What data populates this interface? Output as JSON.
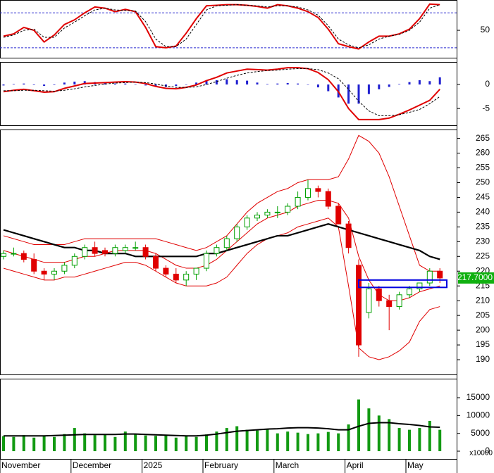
{
  "chart_data": [
    {
      "type": "line",
      "ylim": [
        3,
        102
      ],
      "yticks": [
        50
      ],
      "levels": [
        80,
        20
      ],
      "level_color": "#2a2ad0",
      "series": [
        {
          "color": "#e00000",
          "style": "solid",
          "values": [
            40,
            44,
            55,
            50,
            30,
            42,
            60,
            68,
            80,
            90,
            88,
            82,
            86,
            82,
            55,
            22,
            20,
            23,
            45,
            70,
            92,
            93,
            94,
            94,
            93,
            91,
            88,
            94,
            92,
            88,
            82,
            72,
            52,
            27,
            22,
            18,
            30,
            40,
            40,
            44,
            52,
            70,
            95,
            94
          ]
        },
        {
          "color": "#000000",
          "style": "dashed",
          "values": [
            38,
            42,
            50,
            52,
            38,
            38,
            54,
            64,
            75,
            85,
            88,
            85,
            84,
            83,
            65,
            35,
            22,
            22,
            35,
            60,
            85,
            92,
            93,
            94,
            93,
            92,
            90,
            92,
            92,
            90,
            85,
            76,
            58,
            35,
            25,
            20,
            25,
            35,
            40,
            43,
            50,
            64,
            88,
            94
          ]
        }
      ]
    },
    {
      "type": "macd",
      "ylim": [
        -8.5,
        4.7
      ],
      "yticks": [
        0,
        -5
      ],
      "histogram": {
        "color": "#2020d0",
        "values": [
          -0.2,
          0.1,
          0.2,
          -0.1,
          -0.3,
          -0.1,
          0.4,
          0.6,
          0.7,
          0.5,
          0.3,
          0.2,
          0.2,
          0,
          -0.2,
          -0.5,
          -0.5,
          -0.3,
          0,
          0.4,
          0.8,
          0.9,
          1.1,
          0.9,
          0.8,
          0.4,
          0.1,
          0.2,
          0.3,
          0.2,
          0,
          -0.6,
          -1.4,
          -2.7,
          -4.0,
          -4.0,
          -2.0,
          -1.0,
          -0.5,
          0.1,
          0.5,
          0.9,
          0.7,
          1.5
        ]
      },
      "series": [
        {
          "color": "#e00000",
          "style": "solid",
          "values": [
            -1.5,
            -1.2,
            -1.0,
            -1.3,
            -1.6,
            -1.5,
            -0.8,
            -0.3,
            0.2,
            0.3,
            0.4,
            0.5,
            0.6,
            0.5,
            0.2,
            -0.4,
            -0.8,
            -0.9,
            -0.6,
            -0.1,
            0.8,
            1.5,
            2.4,
            2.8,
            3.2,
            3.1,
            3.0,
            3.2,
            3.5,
            3.5,
            3.3,
            2.5,
            1.0,
            -1.5,
            -5.0,
            -7.3,
            -7.3,
            -7.3,
            -7.0,
            -6.2,
            -5.3,
            -4.3,
            -3.3,
            -1.0
          ]
        },
        {
          "color": "#000000",
          "style": "dashed",
          "values": [
            -1.3,
            -1.3,
            -1.2,
            -1.2,
            -1.3,
            -1.4,
            -1.2,
            -0.9,
            -0.5,
            -0.2,
            0.1,
            0.3,
            0.4,
            0.5,
            0.4,
            0.1,
            -0.3,
            -0.6,
            -0.6,
            -0.5,
            0.0,
            0.6,
            1.3,
            1.9,
            2.4,
            2.7,
            2.9,
            3.0,
            3.2,
            3.3,
            3.3,
            3.1,
            2.4,
            1.2,
            -1.0,
            -3.5,
            -5.5,
            -6.5,
            -6.5,
            -6.3,
            -5.8,
            -5.2,
            -4.0,
            -2.5
          ]
        }
      ]
    },
    {
      "type": "candlestick",
      "ylim": [
        185,
        268
      ],
      "yticks": [
        190,
        195,
        200,
        205,
        210,
        215,
        220,
        225,
        230,
        235,
        240,
        245,
        250,
        255,
        260,
        265
      ],
      "up_color": "#00a000",
      "down_color": "#e00000",
      "open": [
        225,
        226,
        226,
        224,
        220,
        219,
        220,
        222,
        225,
        228,
        227,
        226,
        227,
        228,
        228,
        225,
        221,
        219,
        217,
        219,
        221,
        226,
        228,
        231,
        235,
        238,
        239,
        240,
        240,
        242,
        245,
        248,
        247,
        242,
        236,
        222,
        206,
        214,
        210,
        208,
        212,
        214,
        216,
        220
      ],
      "high": [
        227,
        228,
        227,
        226,
        221,
        221,
        223,
        226,
        229,
        230,
        228,
        229,
        229,
        230,
        229,
        226,
        222,
        221,
        220,
        221,
        227,
        229,
        232,
        236,
        239,
        240,
        241,
        242,
        243,
        247,
        251,
        249,
        248,
        243,
        237,
        224,
        216,
        215,
        212,
        213,
        215,
        216,
        221,
        221
      ],
      "low": [
        224,
        225,
        223,
        219,
        217,
        217,
        219,
        221,
        224,
        225,
        225,
        225,
        226,
        227,
        224,
        220,
        218,
        216,
        215,
        217,
        220,
        225,
        227,
        230,
        234,
        237,
        238,
        238,
        239,
        241,
        244,
        245,
        241,
        236,
        226,
        191,
        204,
        208,
        200,
        207,
        211,
        213,
        215,
        216
      ],
      "close": [
        226,
        226,
        224,
        220,
        219,
        220,
        222,
        225,
        228,
        226,
        226,
        228,
        228,
        228,
        225,
        221,
        219,
        217,
        219,
        221,
        226,
        228,
        231,
        235,
        238,
        239,
        240,
        240,
        242,
        245,
        248,
        247,
        242,
        236,
        228,
        195,
        214,
        210,
        208,
        212,
        214,
        216,
        220,
        217.7
      ],
      "series": [
        {
          "color": "#e00000",
          "width": 1,
          "values": [
            232,
            231,
            230,
            229,
            229,
            229,
            229,
            230,
            231,
            231,
            231,
            231,
            231,
            231,
            231,
            231,
            230,
            229,
            228,
            227,
            228,
            230,
            232,
            236,
            240,
            243,
            245,
            247,
            248,
            250,
            251,
            251,
            251,
            252,
            258,
            266,
            264,
            260,
            252,
            242,
            232,
            222,
            220,
            220
          ]
        },
        {
          "color": "#e00000",
          "width": 1,
          "values": [
            227,
            226,
            225,
            224,
            223,
            223,
            223,
            224,
            225,
            225,
            226,
            227,
            227,
            227,
            227,
            226,
            224,
            222,
            221,
            221,
            222,
            224,
            227,
            230,
            233,
            236,
            238,
            239,
            240,
            242,
            243,
            244,
            244,
            243,
            238,
            225,
            217,
            212,
            210,
            210,
            211,
            213,
            214,
            215
          ]
        },
        {
          "color": "#e00000",
          "width": 1,
          "values": [
            221,
            220,
            219,
            218,
            217,
            217,
            218,
            218,
            219,
            220,
            221,
            222,
            223,
            223,
            222,
            220,
            218,
            216,
            215,
            215,
            215,
            216,
            218,
            222,
            226,
            229,
            231,
            232,
            233,
            235,
            236,
            237,
            238,
            235,
            215,
            194,
            191,
            190,
            191,
            193,
            196,
            203,
            207,
            208
          ]
        },
        {
          "color": "#000000",
          "width": 2.2,
          "values": [
            234,
            233,
            232,
            231,
            230,
            229,
            228,
            228,
            227,
            227,
            226,
            226,
            226,
            225,
            225,
            225,
            225,
            225,
            225,
            225,
            226,
            226,
            227,
            228,
            229,
            230,
            231,
            232,
            232,
            233,
            234,
            235,
            236,
            235,
            234,
            233,
            232,
            231,
            230,
            229,
            228,
            227,
            225,
            224
          ]
        }
      ],
      "zone": {
        "color": "#0000e0",
        "start": 35,
        "range": [
          214.5,
          217
        ]
      },
      "last_price": {
        "value": 217.7,
        "label": "217.7000",
        "color": "#10b010"
      }
    },
    {
      "type": "bar",
      "ylim": [
        -2170,
        20330
      ],
      "yticks": [
        0,
        5000,
        10000,
        15000
      ],
      "unit_label": "x10000",
      "color": "#129a12",
      "values": [
        4200,
        4000,
        4500,
        3800,
        4300,
        4000,
        4800,
        6500,
        5000,
        4500,
        4600,
        4000,
        5500,
        4800,
        4400,
        4300,
        4500,
        3800,
        4200,
        4000,
        4700,
        5500,
        6500,
        7000,
        6000,
        5800,
        6200,
        5000,
        5500,
        5200,
        4800,
        5000,
        5400,
        5000,
        7500,
        14500,
        12000,
        10000,
        9000,
        6500,
        6000,
        6500,
        8500,
        6000
      ],
      "ma": {
        "color": "#000000",
        "values": [
          4300,
          4300,
          4300,
          4300,
          4300,
          4400,
          4500,
          4600,
          4700,
          4700,
          4700,
          4700,
          4800,
          4800,
          4700,
          4600,
          4500,
          4400,
          4300,
          4300,
          4500,
          4800,
          5200,
          5600,
          5800,
          6000,
          6200,
          6300,
          6500,
          6600,
          6600,
          6500,
          6300,
          6000,
          6000,
          7000,
          7800,
          8000,
          8000,
          7700,
          7500,
          7200,
          6800,
          6700
        ]
      },
      "categories": [
        "November",
        null,
        null,
        null,
        null,
        null,
        null,
        "December",
        null,
        null,
        null,
        null,
        null,
        null,
        "2025",
        null,
        null,
        null,
        null,
        null,
        "February",
        null,
        null,
        null,
        null,
        null,
        null,
        "March",
        null,
        null,
        null,
        null,
        null,
        null,
        "April",
        null,
        null,
        null,
        null,
        null,
        "May",
        null,
        null,
        null
      ]
    }
  ]
}
